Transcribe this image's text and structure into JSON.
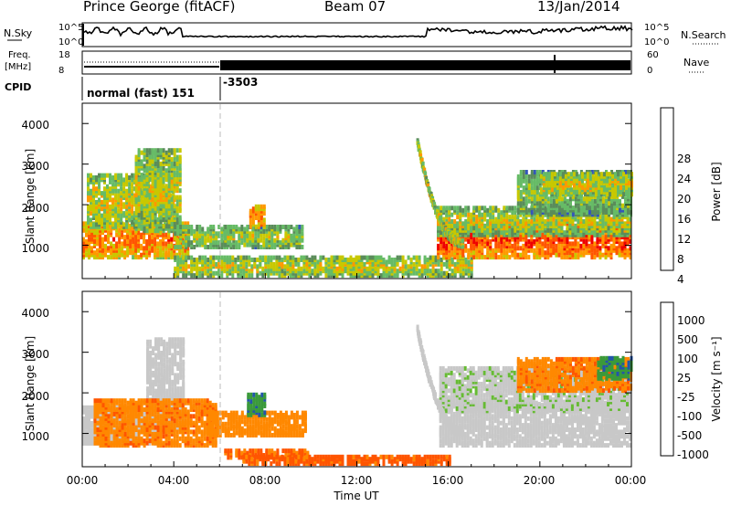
{
  "header": {
    "station": "Prince George (fitACF)",
    "beam": "Beam 07",
    "date": "13/Jan/2014"
  },
  "strips": {
    "nsky_label": "N.Sky",
    "nsky_ticks": [
      "10^5",
      "10^0"
    ],
    "nsearch_label": "N.Search",
    "nsearch_ticks": [
      "10^5",
      "10^0"
    ],
    "freq_label_1": "Freq.",
    "freq_label_2": "[MHz]",
    "freq_ticks": [
      "18",
      "8"
    ],
    "nave_label": "Nave",
    "nave_ticks": [
      "60",
      "0"
    ],
    "cpid_label": "CPID",
    "cpid_mode": "normal (fast) 151",
    "cpid_id": "-3503"
  },
  "power_panel": {
    "ylabel": "Slant Range [km]",
    "yticks": [
      "4000",
      "3000",
      "2000",
      "1000"
    ],
    "colorbar_label": "Power [dB]",
    "colorbar_ticks": [
      "28",
      "24",
      "20",
      "16",
      "12",
      "8",
      "4"
    ]
  },
  "velocity_panel": {
    "ylabel": "Slant Range [km]",
    "yticks": [
      "4000",
      "3000",
      "2000",
      "1000"
    ],
    "colorbar_label": "Velocity [m s⁻¹]",
    "colorbar_ticks": [
      "1000",
      "500",
      "100",
      "25",
      "-25",
      "-100",
      "-500",
      "-1000"
    ]
  },
  "xaxis": {
    "ticks": [
      "00:00",
      "04:00",
      "08:00",
      "12:00",
      "16:00",
      "20:00",
      "00:00"
    ],
    "label": "Time UT"
  },
  "chart_data": [
    {
      "type": "heatmap",
      "quantity": "Power",
      "x_range_hours": [
        0,
        24
      ],
      "y_range_km": [
        180,
        4500
      ],
      "colorscale": [
        "#0000dd",
        "#3355bb",
        "#5a8c5a",
        "#66bb66",
        "#c8c800",
        "#ff9900",
        "#ff5500",
        "#ee0000"
      ],
      "colorbar_range_db": [
        0,
        32
      ],
      "blobs": [
        {
          "t0": 0.0,
          "t1": 4.6,
          "r0": 650,
          "r1": 1500,
          "c": 0.62
        },
        {
          "t0": 0.2,
          "t1": 4.0,
          "r0": 1400,
          "r1": 2700,
          "c": 0.42
        },
        {
          "t0": 2.3,
          "t1": 4.3,
          "r0": 1300,
          "r1": 3300,
          "c": 0.38
        },
        {
          "t0": 4.0,
          "t1": 6.5,
          "r0": 900,
          "r1": 1400,
          "c": 0.35
        },
        {
          "t0": 6.2,
          "t1": 9.6,
          "r0": 900,
          "r1": 1400,
          "c": 0.35
        },
        {
          "t0": 7.3,
          "t1": 8.0,
          "r0": 1400,
          "r1": 1900,
          "c": 0.65
        },
        {
          "t0": 4.0,
          "t1": 17.0,
          "r0": 200,
          "r1": 650,
          "c": 0.4
        },
        {
          "t0": 15.5,
          "t1": 24.0,
          "r0": 650,
          "r1": 1500,
          "c": 0.7
        },
        {
          "t0": 15.5,
          "t1": 24.0,
          "r0": 1200,
          "r1": 1900,
          "c": 0.38
        },
        {
          "t0": 19.0,
          "t1": 24.0,
          "r0": 1700,
          "r1": 2800,
          "c": 0.3
        },
        {
          "t0": 20.0,
          "t1": 24.0,
          "r0": 2200,
          "r1": 2700,
          "c": 0.45
        }
      ],
      "arc": {
        "t0": 14.6,
        "t1": 16.6,
        "r0": 3500,
        "r1": 1000,
        "c": 0.5
      }
    },
    {
      "type": "heatmap",
      "quantity": "Velocity",
      "x_range_hours": [
        0,
        24
      ],
      "y_range_km": [
        180,
        4500
      ],
      "colorscale": [
        "#ee0000",
        "#ff5500",
        "#ff8800",
        "#ffbb00",
        "#c8c8c8",
        "#66bb33",
        "#3a9a3a",
        "#2255aa",
        "#1133cc"
      ],
      "colorbar_range_ms": [
        -1000,
        1000
      ],
      "blobs": [
        {
          "t0": 0.0,
          "t1": 3.3,
          "r0": 700,
          "r1": 1600,
          "v": 0
        },
        {
          "t0": 2.8,
          "t1": 4.4,
          "r0": 1000,
          "r1": 3300,
          "v": 0
        },
        {
          "t0": 0.5,
          "t1": 5.8,
          "r0": 650,
          "r1": 1800,
          "v": -0.55
        },
        {
          "t0": 5.5,
          "t1": 9.8,
          "r0": 900,
          "r1": 1500,
          "v": -0.5
        },
        {
          "t0": 6.2,
          "t1": 9.8,
          "r0": 350,
          "r1": 550,
          "v": -0.7
        },
        {
          "t0": 7.2,
          "t1": 8.0,
          "r0": 1400,
          "r1": 1900,
          "v": 0.55
        },
        {
          "t0": 7.0,
          "t1": 16.0,
          "r0": 200,
          "r1": 400,
          "v": -0.7
        },
        {
          "t0": 15.6,
          "t1": 24.0,
          "r0": 650,
          "r1": 1700,
          "v": 0
        },
        {
          "t0": 15.6,
          "t1": 24.0,
          "r0": 1500,
          "r1": 2600,
          "v": 0.05
        },
        {
          "t0": 19.0,
          "t1": 24.0,
          "r0": 2000,
          "r1": 2800,
          "v": -0.55
        },
        {
          "t0": 22.5,
          "t1": 24.0,
          "r0": 2300,
          "r1": 2800,
          "v": 0.55
        }
      ],
      "arc": {
        "t0": 14.6,
        "t1": 16.6,
        "r0": 3500,
        "r1": 1000,
        "v": 0
      }
    }
  ]
}
